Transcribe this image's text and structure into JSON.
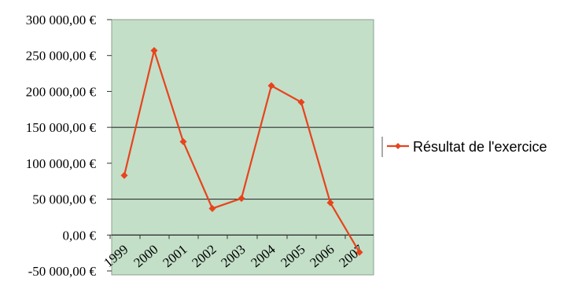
{
  "chart_data": {
    "type": "line",
    "x": [
      "1999",
      "2000",
      "2001",
      "2002",
      "2003",
      "2004",
      "2005",
      "2006",
      "2007"
    ],
    "series": [
      {
        "name": "Résultat de l'exercice",
        "values": [
          83000,
          257000,
          130000,
          37000,
          51000,
          208000,
          185000,
          45000,
          -24000
        ]
      }
    ],
    "y_ticks": [
      "300 000,00 €",
      "250 000,00 €",
      "200 000,00 €",
      "150 000,00 €",
      "100 000,00 €",
      "50 000,00 €",
      "0,00 €",
      "-50 000,00 €"
    ],
    "y_tick_values": [
      300000,
      250000,
      200000,
      150000,
      100000,
      50000,
      0,
      -50000
    ],
    "ylim": [
      -50000,
      300000
    ],
    "gridlines": [
      150000,
      50000,
      0
    ],
    "legend_position": "right",
    "colors": {
      "plot_background": "#c3dfc8",
      "line": "#e8431c",
      "axis": "#000000",
      "border": "#7a8a7a"
    }
  }
}
